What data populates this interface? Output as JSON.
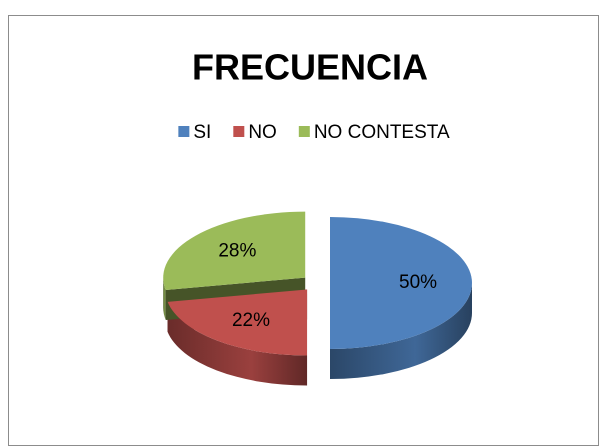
{
  "chart_data": {
    "type": "pie",
    "title": "FRECUENCIA",
    "categories": [
      "SI",
      "NO",
      "NO CONTESTA"
    ],
    "values": [
      50,
      22,
      28
    ],
    "value_labels": [
      "50%",
      "22%",
      "28%"
    ],
    "colors": [
      "#4f81bd",
      "#c0504d",
      "#9bbb59"
    ],
    "legend": "top"
  }
}
